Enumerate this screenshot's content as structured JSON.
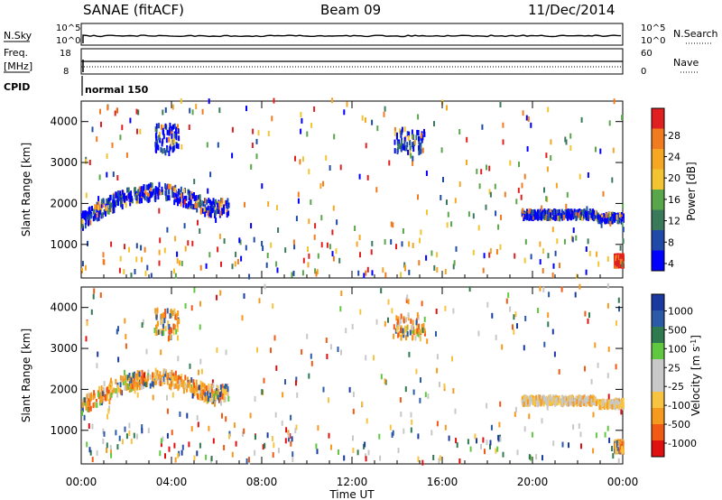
{
  "header": {
    "station": "SANAE (fitACF)",
    "beam": "Beam 09",
    "date": "11/Dec/2014"
  },
  "panels": {
    "nsky": {
      "label": "N.Sky",
      "left_ticks": [
        "10^5",
        "10^0"
      ],
      "right_label": "N.Search",
      "right_ticks": [
        "10^5",
        "10^0"
      ]
    },
    "freq": {
      "label_top": "Freq.",
      "label_bottom": "[MHz]",
      "left_ticks": [
        "18",
        "8"
      ],
      "right_label": "Nave",
      "right_ticks": [
        "60",
        "0"
      ]
    },
    "cpid": {
      "label": "CPID",
      "mode": "normal 150"
    }
  },
  "colors": {
    "power_scale": [
      "#0000ff",
      "#1f4aa8",
      "#3a7a5a",
      "#5aa64a",
      "#f3c431",
      "#f5a623",
      "#f07b20",
      "#e02020"
    ],
    "velocity_scale": [
      "#e01010",
      "#f05a14",
      "#f59a1e",
      "#f7c340",
      "#c8c8c8",
      "#c8c8c8",
      "#5fc840",
      "#2f7a4f",
      "#2a5aa8",
      "#1a3aa0"
    ]
  },
  "chart_data": [
    {
      "type": "heatmap",
      "name": "power",
      "xlabel": "",
      "ylabel": "Slant Range [km]",
      "x_ticks": [
        "00:00",
        "04:00",
        "08:00",
        "12:00",
        "16:00",
        "20:00",
        "00:00"
      ],
      "y_ticks": [
        1000,
        2000,
        3000,
        4000
      ],
      "xlim_hours": [
        0,
        24
      ],
      "ylim_km": [
        180,
        4500
      ],
      "colorbar_label": "Power [dB]",
      "colorbar_ticks": [
        "28",
        "24",
        "20",
        "16",
        "12",
        "8",
        "4"
      ],
      "scatter_regions": [
        {
          "hours": [
            0,
            6.5
          ],
          "km": [
            1400,
            2300
          ],
          "density": "high",
          "dominant": "blue"
        },
        {
          "hours": [
            3.2,
            4.3
          ],
          "km": [
            3200,
            3900
          ],
          "density": "medium",
          "dominant": "blue"
        },
        {
          "hours": [
            13.8,
            15.2
          ],
          "km": [
            3200,
            3800
          ],
          "density": "medium",
          "dominant": "blue"
        },
        {
          "hours": [
            19.5,
            24
          ],
          "km": [
            1550,
            1850
          ],
          "density": "high",
          "dominant": "blue"
        },
        {
          "hours": [
            23.6,
            24
          ],
          "km": [
            450,
            700
          ],
          "density": "high",
          "dominant": "red"
        },
        {
          "hours": [
            0,
            24
          ],
          "km": [
            180,
            4500
          ],
          "density": "sparse",
          "dominant": "mixed"
        }
      ]
    },
    {
      "type": "heatmap",
      "name": "velocity",
      "xlabel": "Time UT",
      "ylabel": "Slant Range [km]",
      "x_ticks": [
        "00:00",
        "04:00",
        "08:00",
        "12:00",
        "16:00",
        "20:00",
        "00:00"
      ],
      "y_ticks": [
        1000,
        2000,
        3000,
        4000
      ],
      "xlim_hours": [
        0,
        24
      ],
      "ylim_km": [
        180,
        4500
      ],
      "colorbar_label": "Velocity [m s",
      "colorbar_label_sup": "-1",
      "colorbar_ticks": [
        "1000",
        "500",
        "100",
        "25",
        "-25",
        "-100",
        "-500",
        "-1000"
      ],
      "scatter_regions": [
        {
          "hours": [
            0,
            6.5
          ],
          "km": [
            1400,
            2300
          ],
          "density": "high",
          "dominant": "orange"
        },
        {
          "hours": [
            3.2,
            4.3
          ],
          "km": [
            3200,
            3900
          ],
          "density": "medium",
          "dominant": "orange"
        },
        {
          "hours": [
            13.8,
            15.2
          ],
          "km": [
            3200,
            3800
          ],
          "density": "medium",
          "dominant": "orange"
        },
        {
          "hours": [
            19.5,
            24
          ],
          "km": [
            1550,
            1850
          ],
          "density": "high",
          "dominant": "gray"
        },
        {
          "hours": [
            23.6,
            24
          ],
          "km": [
            450,
            700
          ],
          "density": "high",
          "dominant": "orange"
        },
        {
          "hours": [
            0,
            24
          ],
          "km": [
            180,
            4500
          ],
          "density": "sparse",
          "dominant": "mixed"
        }
      ]
    }
  ]
}
